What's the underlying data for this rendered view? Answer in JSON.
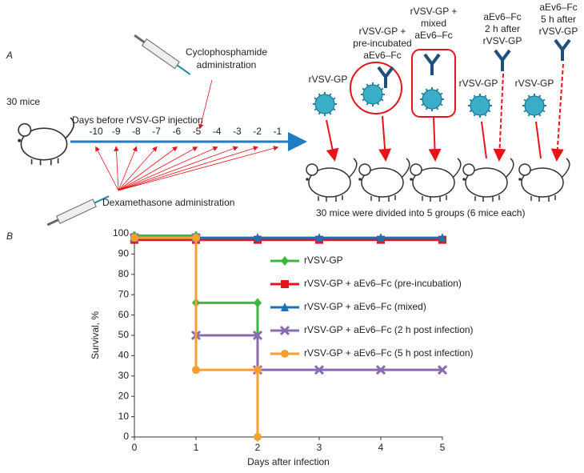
{
  "panel_labels": [
    "A",
    "B"
  ],
  "diagram": {
    "mice_count": "30 mice",
    "timeline_title": "Days before rVSV-GP injection",
    "days": [
      -10,
      -9,
      -8,
      -7,
      -6,
      -5,
      -4,
      -3,
      -2,
      -1
    ],
    "cyclophosphamide": [
      "Cyclophosphamide",
      "administration"
    ],
    "dexamethasone": "Dexamethasone administration",
    "groups": [
      {
        "label": [
          "rVSV-GP"
        ]
      },
      {
        "label": [
          "rVSV-GP +",
          "pre-incubated",
          "aEv6–Fc"
        ]
      },
      {
        "label": [
          "rVSV-GP +",
          "mixed",
          "aEv6–Fc"
        ]
      },
      {
        "label": [
          "aEv6–Fc",
          "2 h after",
          "rVSV-GP"
        ],
        "virus": "rVSV-GP"
      },
      {
        "label": [
          "aEv6–Fc",
          "5 h after",
          "rVSV-GP"
        ],
        "virus": "rVSV-GP"
      }
    ],
    "groups_note": "30 mice were divided into 5 groups (6 mice each)"
  },
  "chart_data": {
    "type": "line",
    "step": true,
    "xlabel": "Days after infection",
    "ylabel": "Survival, %",
    "xlim": [
      0,
      5
    ],
    "xticks": [
      0,
      1,
      2,
      3,
      4,
      5
    ],
    "ylim": [
      0,
      100
    ],
    "yticks": [
      0,
      10,
      20,
      30,
      40,
      50,
      60,
      70,
      80,
      90,
      100
    ],
    "series": [
      {
        "name": "rVSV-GP",
        "color": "#3cb83c",
        "marker": "diamond",
        "x": [
          0,
          1,
          1,
          2,
          2
        ],
        "values": [
          99,
          99,
          66,
          66,
          0
        ]
      },
      {
        "name": "rVSV-GP + aEv6–Fc (pre-incubation)",
        "color": "#e8141c",
        "marker": "square",
        "x": [
          0,
          1,
          2,
          3,
          4,
          5
        ],
        "values": [
          97,
          97,
          97,
          97,
          97,
          97
        ]
      },
      {
        "name": "rVSV-GP + aEv6–Fc (mixed)",
        "color": "#1f6fb5",
        "marker": "triangle",
        "x": [
          0,
          1,
          2,
          3,
          4,
          5
        ],
        "values": [
          98,
          98,
          98,
          98,
          98,
          98
        ]
      },
      {
        "name": "rVSV-GP + aEv6–Fc (2 h post infection)",
        "color": "#8b6bb0",
        "marker": "cross",
        "x": [
          0,
          1,
          1,
          2,
          2,
          3,
          4,
          5
        ],
        "values": [
          98,
          98,
          50,
          50,
          33,
          33,
          33,
          33
        ]
      },
      {
        "name": "rVSV-GP + aEv6–Fc (5 h post infection)",
        "color": "#f5a030",
        "marker": "circle",
        "x": [
          0,
          1,
          1,
          2,
          2
        ],
        "values": [
          98,
          98,
          33,
          33,
          0
        ]
      }
    ]
  }
}
